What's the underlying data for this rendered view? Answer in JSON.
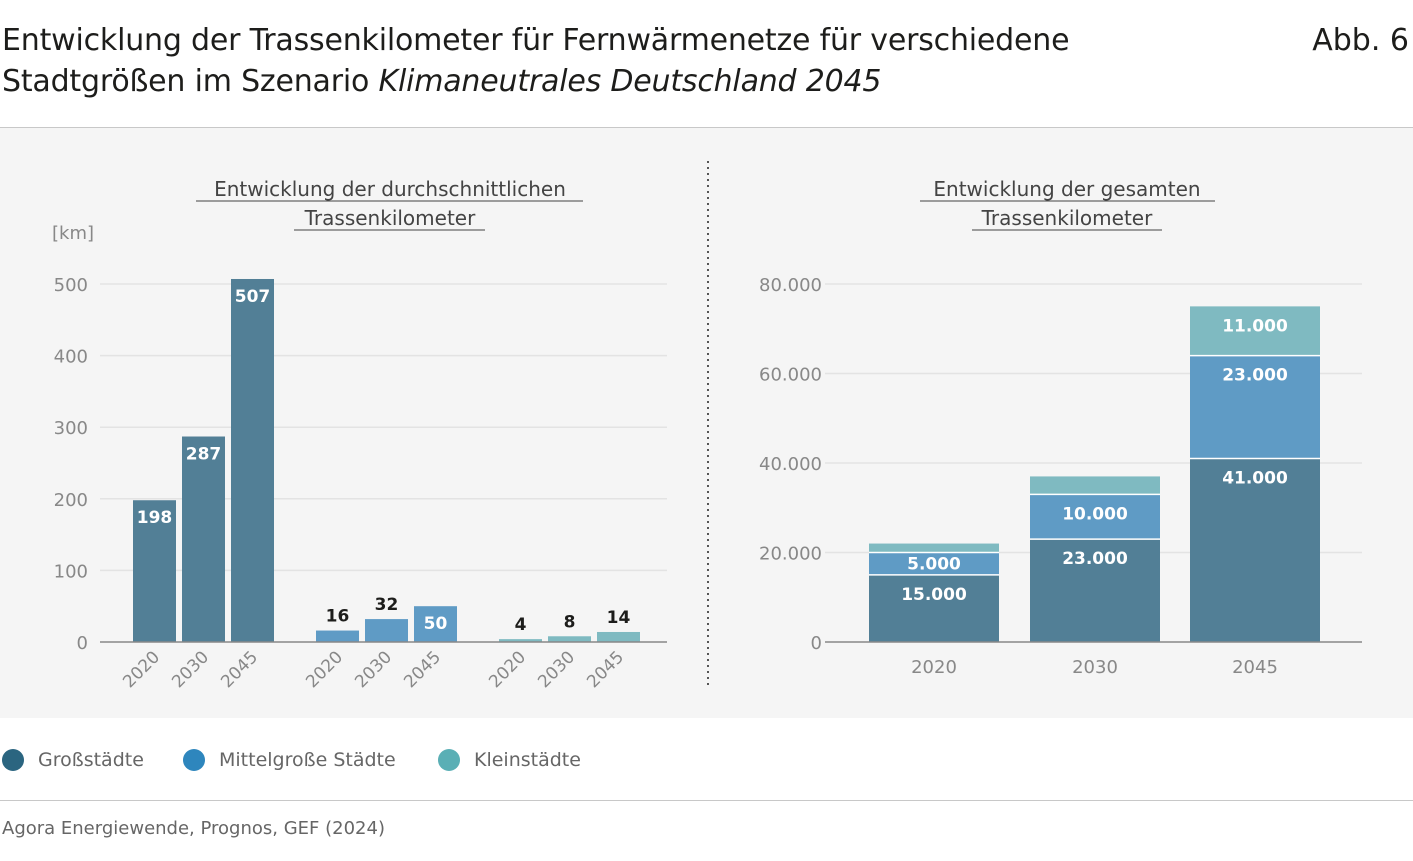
{
  "header": {
    "title_line1": "Entwicklung der Trassenkilometer für Fernwärmenetze für verschiedene",
    "title_line2_plain": "Stadtgrößen im Szenario ",
    "title_line2_italic": "Klimaneutrales Deutschland 2045",
    "figure_label": "Abb. 6"
  },
  "colors": {
    "grossstaedte": "#527f96",
    "mittelgrosse": "#5f9bc5",
    "kleinstaedte": "#7fbac1",
    "legend_grossstaedte": "#2b6580",
    "legend_mittelgrosse": "#2e86bd",
    "legend_kleinstaedte": "#5aafb5"
  },
  "legend": [
    {
      "label": "Großstädte",
      "color_key": "legend_grossstaedte"
    },
    {
      "label": "Mittelgroße Städte",
      "color_key": "legend_mittelgrosse"
    },
    {
      "label": "Kleinstädte",
      "color_key": "legend_kleinstaedte"
    }
  ],
  "source": "Agora Energiewende, Prognos, GEF (2024)",
  "chart_data": [
    {
      "type": "bar",
      "title_line1": "Entwicklung der durchschnittlichen",
      "title_line2": "Trassenkilometer",
      "ylabel": "[km]",
      "ylim": [
        0,
        500
      ],
      "yticks": [
        0,
        100,
        200,
        300,
        400,
        500
      ],
      "ytick_labels": [
        "0",
        "100",
        "200",
        "300",
        "400",
        "500"
      ],
      "grid": true,
      "groups": [
        {
          "name": "Großstädte",
          "color_key": "grossstaedte",
          "categories": [
            "2020",
            "2030",
            "2045"
          ],
          "values": [
            198,
            287,
            507
          ],
          "labels": [
            "198",
            "287",
            "507"
          ]
        },
        {
          "name": "Mittelgroße Städte",
          "color_key": "mittelgrosse",
          "categories": [
            "2020",
            "2030",
            "2045"
          ],
          "values": [
            16,
            32,
            50
          ],
          "labels": [
            "16",
            "32",
            "50"
          ]
        },
        {
          "name": "Kleinstädte",
          "color_key": "kleinstaedte",
          "categories": [
            "2020",
            "2030",
            "2045"
          ],
          "values": [
            4,
            8,
            14
          ],
          "labels": [
            "4",
            "8",
            "14"
          ]
        }
      ]
    },
    {
      "type": "bar",
      "stacked": true,
      "title_line1": "Entwicklung der gesamten",
      "title_line2": "Trassenkilometer",
      "ylim": [
        0,
        80000
      ],
      "yticks": [
        0,
        20000,
        40000,
        60000,
        80000
      ],
      "ytick_labels": [
        "0",
        "20.000",
        "40.000",
        "60.000",
        "80.000"
      ],
      "grid": true,
      "categories": [
        "2020",
        "2030",
        "2045"
      ],
      "series": [
        {
          "name": "Großstädte",
          "color_key": "grossstaedte",
          "values": [
            15000,
            23000,
            41000
          ],
          "labels": [
            "15.000",
            "23.000",
            "41.000"
          ]
        },
        {
          "name": "Mittelgroße Städte",
          "color_key": "mittelgrosse",
          "values": [
            5000,
            10000,
            23000
          ],
          "labels": [
            "5.000",
            "10.000",
            "23.000"
          ]
        },
        {
          "name": "Kleinstädte",
          "color_key": "kleinstaedte",
          "values": [
            2000,
            4000,
            11000
          ],
          "labels": [
            "",
            "",
            "11.000"
          ]
        }
      ]
    }
  ]
}
